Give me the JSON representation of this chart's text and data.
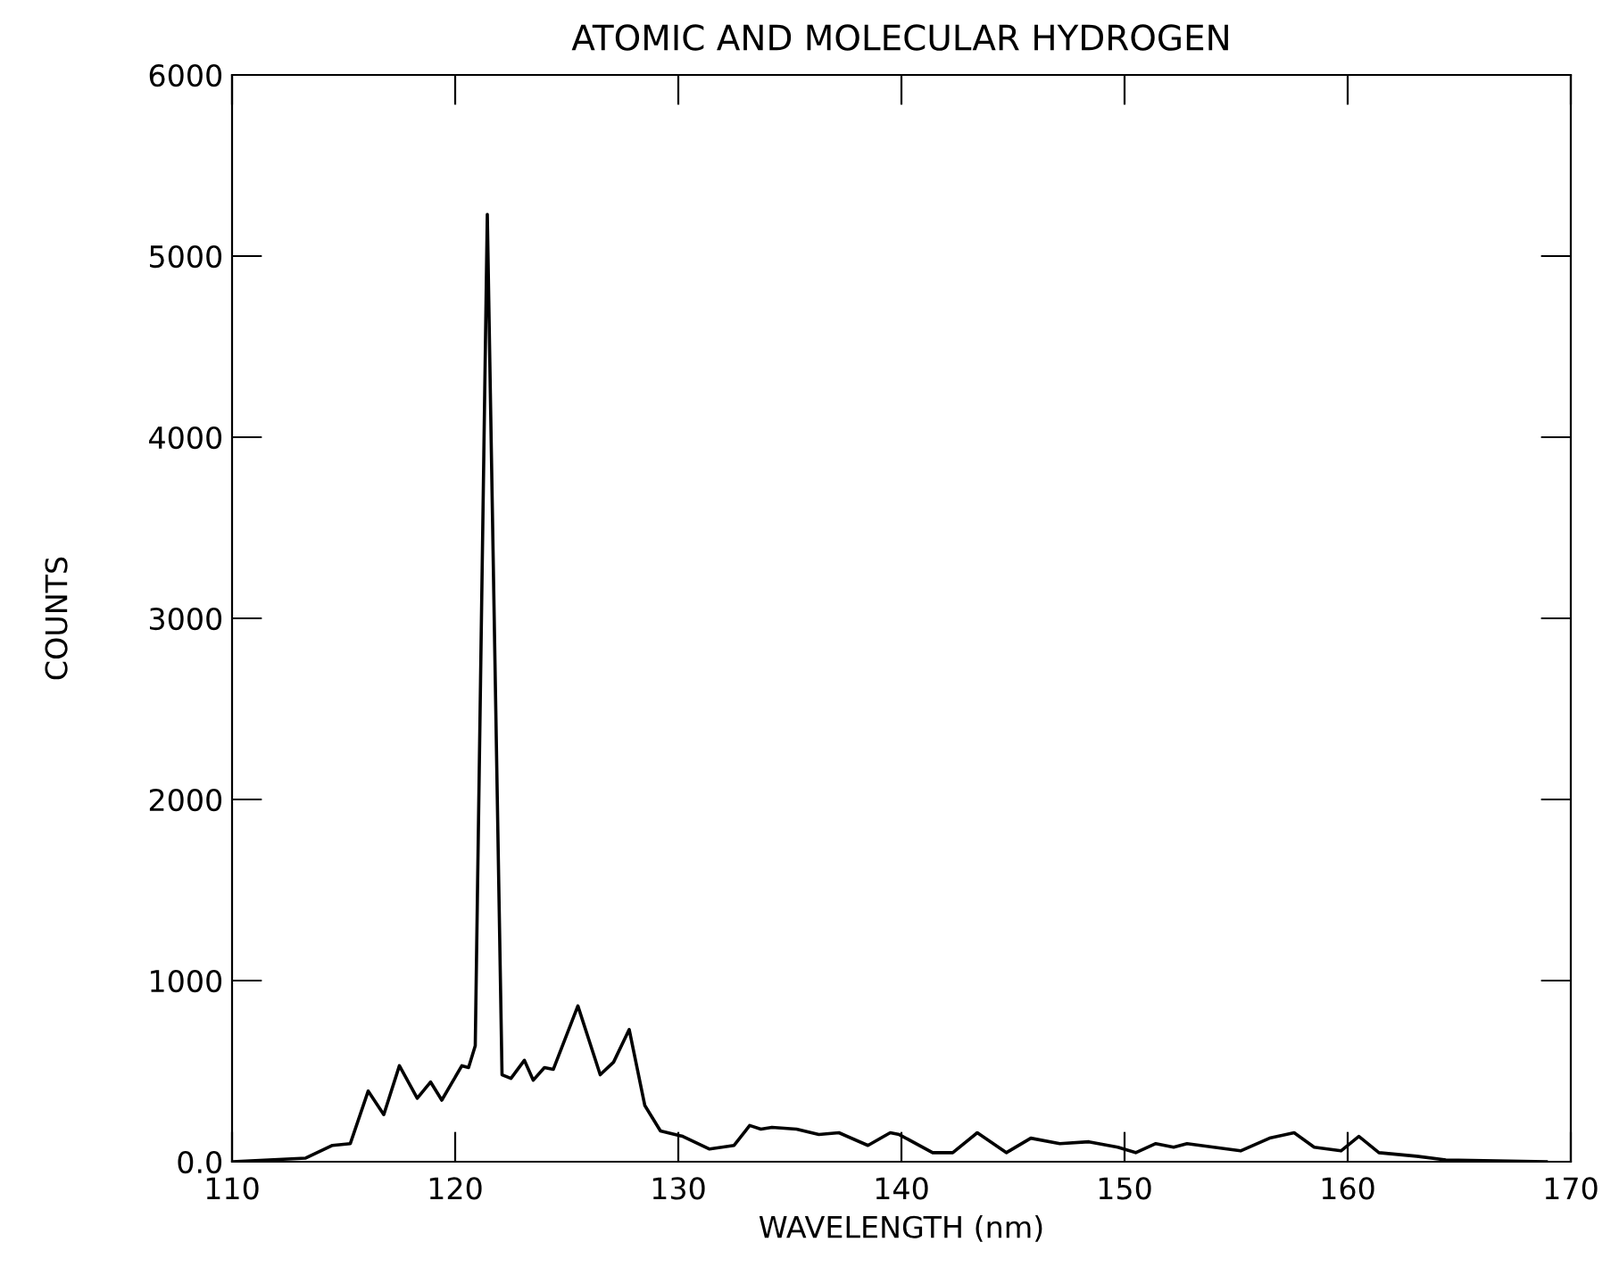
{
  "chart_data": {
    "type": "line",
    "title": "ATOMIC AND MOLECULAR HYDROGEN",
    "xlabel": "WAVELENGTH (nm)",
    "ylabel": "COUNTS",
    "xlim": [
      110,
      170
    ],
    "ylim": [
      0,
      6000
    ],
    "xticks": [
      110,
      120,
      130,
      140,
      150,
      160,
      170
    ],
    "yticks": [
      {
        "value": 0,
        "label": "0.0"
      },
      1000,
      2000,
      3000,
      4000,
      5000,
      6000
    ],
    "grid": false,
    "marker": "none",
    "line_style": "solid",
    "series": [
      {
        "color": "#000000",
        "x": [
          110,
          113.3,
          114.5,
          115.3,
          116.1,
          116.8,
          117.5,
          118.3,
          118.9,
          119.4,
          120.3,
          120.6,
          120.9,
          121.44,
          122.1,
          122.5,
          123.1,
          123.5,
          124.0,
          124.4,
          125.5,
          126.5,
          127.1,
          127.8,
          128.5,
          129.2,
          130.2,
          131.4,
          132.5,
          133.2,
          133.7,
          134.2,
          135.3,
          136.3,
          137.2,
          138.5,
          139.5,
          139.9,
          141.4,
          142.3,
          143.4,
          144.7,
          145.8,
          147.1,
          148.4,
          149.7,
          150.5,
          151.4,
          152.2,
          152.8,
          155.2,
          156.5,
          157.6,
          158.5,
          159.7,
          160.5,
          161.4,
          163.1,
          164.4,
          168.9
        ],
        "values": [
          0,
          20,
          90,
          100,
          390,
          260,
          530,
          350,
          440,
          340,
          530,
          520,
          640,
          5230,
          480,
          460,
          560,
          450,
          520,
          510,
          860,
          480,
          550,
          730,
          310,
          170,
          140,
          70,
          90,
          200,
          180,
          190,
          180,
          150,
          160,
          90,
          160,
          150,
          50,
          50,
          160,
          50,
          130,
          100,
          110,
          80,
          50,
          100,
          80,
          100,
          60,
          130,
          160,
          80,
          60,
          140,
          50,
          30,
          10,
          0
        ]
      }
    ]
  }
}
